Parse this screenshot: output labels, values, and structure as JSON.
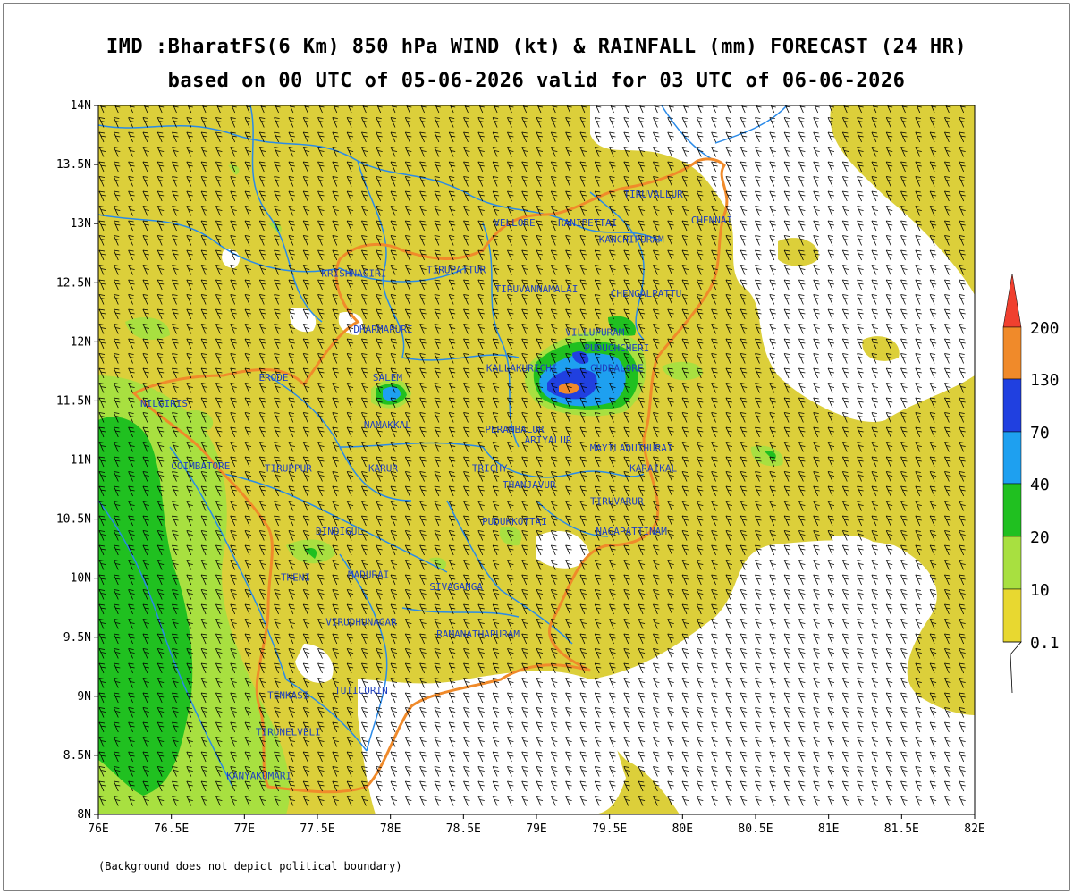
{
  "header": {
    "title_line1": "IMD :BharatFS(6 Km) 850 hPa WIND (kt) & RAINFALL (mm) FORECAST (24 HR)",
    "title_line2": "based on 00 UTC of 05-06-2026 valid for 03 UTC of 06-06-2026"
  },
  "footnote": "(Background does not depict political boundary)",
  "axes": {
    "lon_ticks": [
      "76E",
      "76.5E",
      "77E",
      "77.5E",
      "78E",
      "78.5E",
      "79E",
      "79.5E",
      "80E",
      "80.5E",
      "81E",
      "81.5E",
      "82E"
    ],
    "lat_ticks": [
      "14N",
      "13.5N",
      "13N",
      "12.5N",
      "12N",
      "11.5N",
      "11N",
      "10.5N",
      "10N",
      "9.5N",
      "9N",
      "8.5N",
      "8N"
    ],
    "lon_range": [
      76,
      82
    ],
    "lat_range": [
      8,
      14
    ]
  },
  "legend": {
    "labels": [
      "200",
      "130",
      "70",
      "40",
      "20",
      "10",
      "0.1"
    ],
    "colors": [
      "#f0402f",
      "#f08a2a",
      "#2040e0",
      "#1ea0f0",
      "#20c020",
      "#a8e040",
      "#e8d830"
    ]
  },
  "colors": {
    "land_fill": "#dccf3a",
    "boundary_state": "#f08a2a",
    "boundary_district": "#2a8ae8",
    "district_label": "#2040c0"
  },
  "districts": [
    {
      "name": "TIRUVALLUR",
      "lon": 79.8,
      "lat": 13.22
    },
    {
      "name": "CHENNAI",
      "lon": 80.2,
      "lat": 13.0
    },
    {
      "name": "VELLORE",
      "lon": 78.85,
      "lat": 12.98
    },
    {
      "name": "RANIPETTAI",
      "lon": 79.35,
      "lat": 12.98
    },
    {
      "name": "KANCHIPURAM",
      "lon": 79.65,
      "lat": 12.84
    },
    {
      "name": "KRISHNAGIRI",
      "lon": 77.75,
      "lat": 12.55
    },
    {
      "name": "TIRUPATTUR",
      "lon": 78.45,
      "lat": 12.58
    },
    {
      "name": "TIRUVANNAMALAI",
      "lon": 79.0,
      "lat": 12.42
    },
    {
      "name": "CHENGALPATTU",
      "lon": 79.75,
      "lat": 12.38
    },
    {
      "name": "VILLUPURAM",
      "lon": 79.4,
      "lat": 12.05
    },
    {
      "name": "DHARMAPURI",
      "lon": 77.95,
      "lat": 12.08
    },
    {
      "name": "PUDUCHCHERI",
      "lon": 79.55,
      "lat": 11.92
    },
    {
      "name": "KALLAKURICHI",
      "lon": 78.9,
      "lat": 11.75
    },
    {
      "name": "CUDDALORE",
      "lon": 79.55,
      "lat": 11.75
    },
    {
      "name": "SALEM",
      "lon": 77.98,
      "lat": 11.67
    },
    {
      "name": "ERODE",
      "lon": 77.2,
      "lat": 11.67
    },
    {
      "name": "NILGIRIS",
      "lon": 76.45,
      "lat": 11.45
    },
    {
      "name": "NAMAKKAL",
      "lon": 77.98,
      "lat": 11.27
    },
    {
      "name": "PERAMBALUR",
      "lon": 78.85,
      "lat": 11.23
    },
    {
      "name": "ARIYALUR",
      "lon": 79.08,
      "lat": 11.14
    },
    {
      "name": "MAYILADUTHURAI",
      "lon": 79.65,
      "lat": 11.07
    },
    {
      "name": "COIMBATORE",
      "lon": 76.7,
      "lat": 10.92
    },
    {
      "name": "TIRUPPUR",
      "lon": 77.3,
      "lat": 10.9
    },
    {
      "name": "KARUR",
      "lon": 77.95,
      "lat": 10.9
    },
    {
      "name": "TRICHY",
      "lon": 78.68,
      "lat": 10.9
    },
    {
      "name": "KARAIKAL",
      "lon": 79.8,
      "lat": 10.9
    },
    {
      "name": "THANJAVUR",
      "lon": 78.95,
      "lat": 10.76
    },
    {
      "name": "TIRUVARUR",
      "lon": 79.55,
      "lat": 10.62
    },
    {
      "name": "PUDUKKOTTAI",
      "lon": 78.85,
      "lat": 10.45
    },
    {
      "name": "DINDIGUL",
      "lon": 77.65,
      "lat": 10.37
    },
    {
      "name": "NAGAPATTINAM",
      "lon": 79.65,
      "lat": 10.37
    },
    {
      "name": "THENI",
      "lon": 77.35,
      "lat": 9.98
    },
    {
      "name": "MADURAI",
      "lon": 77.85,
      "lat": 10.0
    },
    {
      "name": "SIVAGANGA",
      "lon": 78.45,
      "lat": 9.9
    },
    {
      "name": "VIRUDHUNAGAR",
      "lon": 77.8,
      "lat": 9.6
    },
    {
      "name": "RAMANATHAPURAM",
      "lon": 78.6,
      "lat": 9.5
    },
    {
      "name": "TUTICORIN",
      "lon": 77.8,
      "lat": 9.02
    },
    {
      "name": "TENKASI",
      "lon": 77.3,
      "lat": 8.98
    },
    {
      "name": "TIRUNELVELI",
      "lon": 77.3,
      "lat": 8.67
    },
    {
      "name": "KANYAKUMARI",
      "lon": 77.1,
      "lat": 8.3
    }
  ]
}
